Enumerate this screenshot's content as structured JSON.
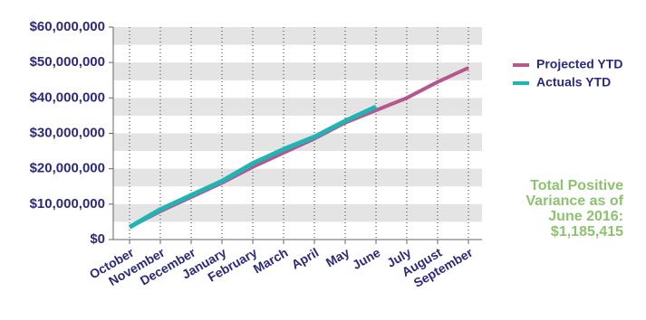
{
  "chart_data": {
    "type": "line",
    "categories": [
      "October",
      "November",
      "December",
      "January",
      "February",
      "March",
      "April",
      "May",
      "June",
      "July",
      "August",
      "September"
    ],
    "series": [
      {
        "name": "Projected YTD",
        "color": "#b5568f",
        "values": [
          3500000,
          8000000,
          12000000,
          16000000,
          20500000,
          24500000,
          28500000,
          33000000,
          36500000,
          40000000,
          44500000,
          48500000
        ]
      },
      {
        "name": "Actuals YTD",
        "color": "#1fb5b5",
        "values": [
          3500000,
          8500000,
          12500000,
          16500000,
          21500000,
          25500000,
          29000000,
          33500000,
          37500000,
          null,
          null,
          null
        ]
      }
    ],
    "ylim": [
      0,
      60000000
    ],
    "yticks": [
      {
        "value": 0,
        "label": "$0"
      },
      {
        "value": 10000000,
        "label": "$10,000,000"
      },
      {
        "value": 20000000,
        "label": "$20,000,000"
      },
      {
        "value": 30000000,
        "label": "$30,000,000"
      },
      {
        "value": 40000000,
        "label": "$40,000,000"
      },
      {
        "value": 50000000,
        "label": "$50,000,000"
      },
      {
        "value": 60000000,
        "label": "$60,000,000"
      }
    ],
    "grid": true,
    "legend": "right",
    "annotation": [
      "Total Positive",
      "Variance as of",
      "June 2016:",
      "$1,185,415"
    ]
  }
}
